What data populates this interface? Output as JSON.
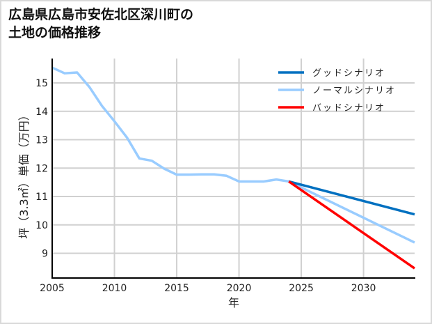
{
  "title_line1": "広島県広島市安佐北区深川町の",
  "title_line2": "土地の価格推移",
  "chart_data": {
    "type": "line",
    "title": "広島県広島市安佐北区深川町の土地の価格推移",
    "xlabel": "年",
    "ylabel": "坪（3.3㎡）単価（万円）",
    "xlim": [
      2005,
      2034.1
    ],
    "ylim": [
      8.13,
      15.86
    ],
    "xticks": [
      2005,
      2010,
      2015,
      2020,
      2025,
      2030
    ],
    "yticks": [
      9,
      10,
      11,
      12,
      13,
      14,
      15
    ],
    "grid": true,
    "legend_position": "upper right",
    "series": [
      {
        "name": "ノーマルシナリオ",
        "color": "#99ccff",
        "x": [
          2005,
          2006,
          2007,
          2008,
          2009,
          2010,
          2011,
          2012,
          2013,
          2014,
          2015,
          2016,
          2017,
          2018,
          2019,
          2020,
          2021,
          2022,
          2023,
          2024,
          2034.1
        ],
        "values": [
          15.54,
          15.34,
          15.37,
          14.85,
          14.19,
          13.65,
          13.08,
          12.34,
          12.26,
          11.98,
          11.77,
          11.77,
          11.78,
          11.78,
          11.73,
          11.53,
          11.53,
          11.53,
          11.6,
          11.53,
          9.38
        ]
      },
      {
        "name": "グッドシナリオ",
        "color": "#0070c0",
        "x": [
          2024,
          2034.1
        ],
        "values": [
          11.53,
          10.37
        ]
      },
      {
        "name": "バッドシナリオ",
        "color": "#ff0000",
        "x": [
          2024,
          2034.1
        ],
        "values": [
          11.53,
          8.47
        ]
      }
    ],
    "legend": [
      "グッドシナリオ",
      "ノーマルシナリオ",
      "バッドシナリオ"
    ]
  }
}
